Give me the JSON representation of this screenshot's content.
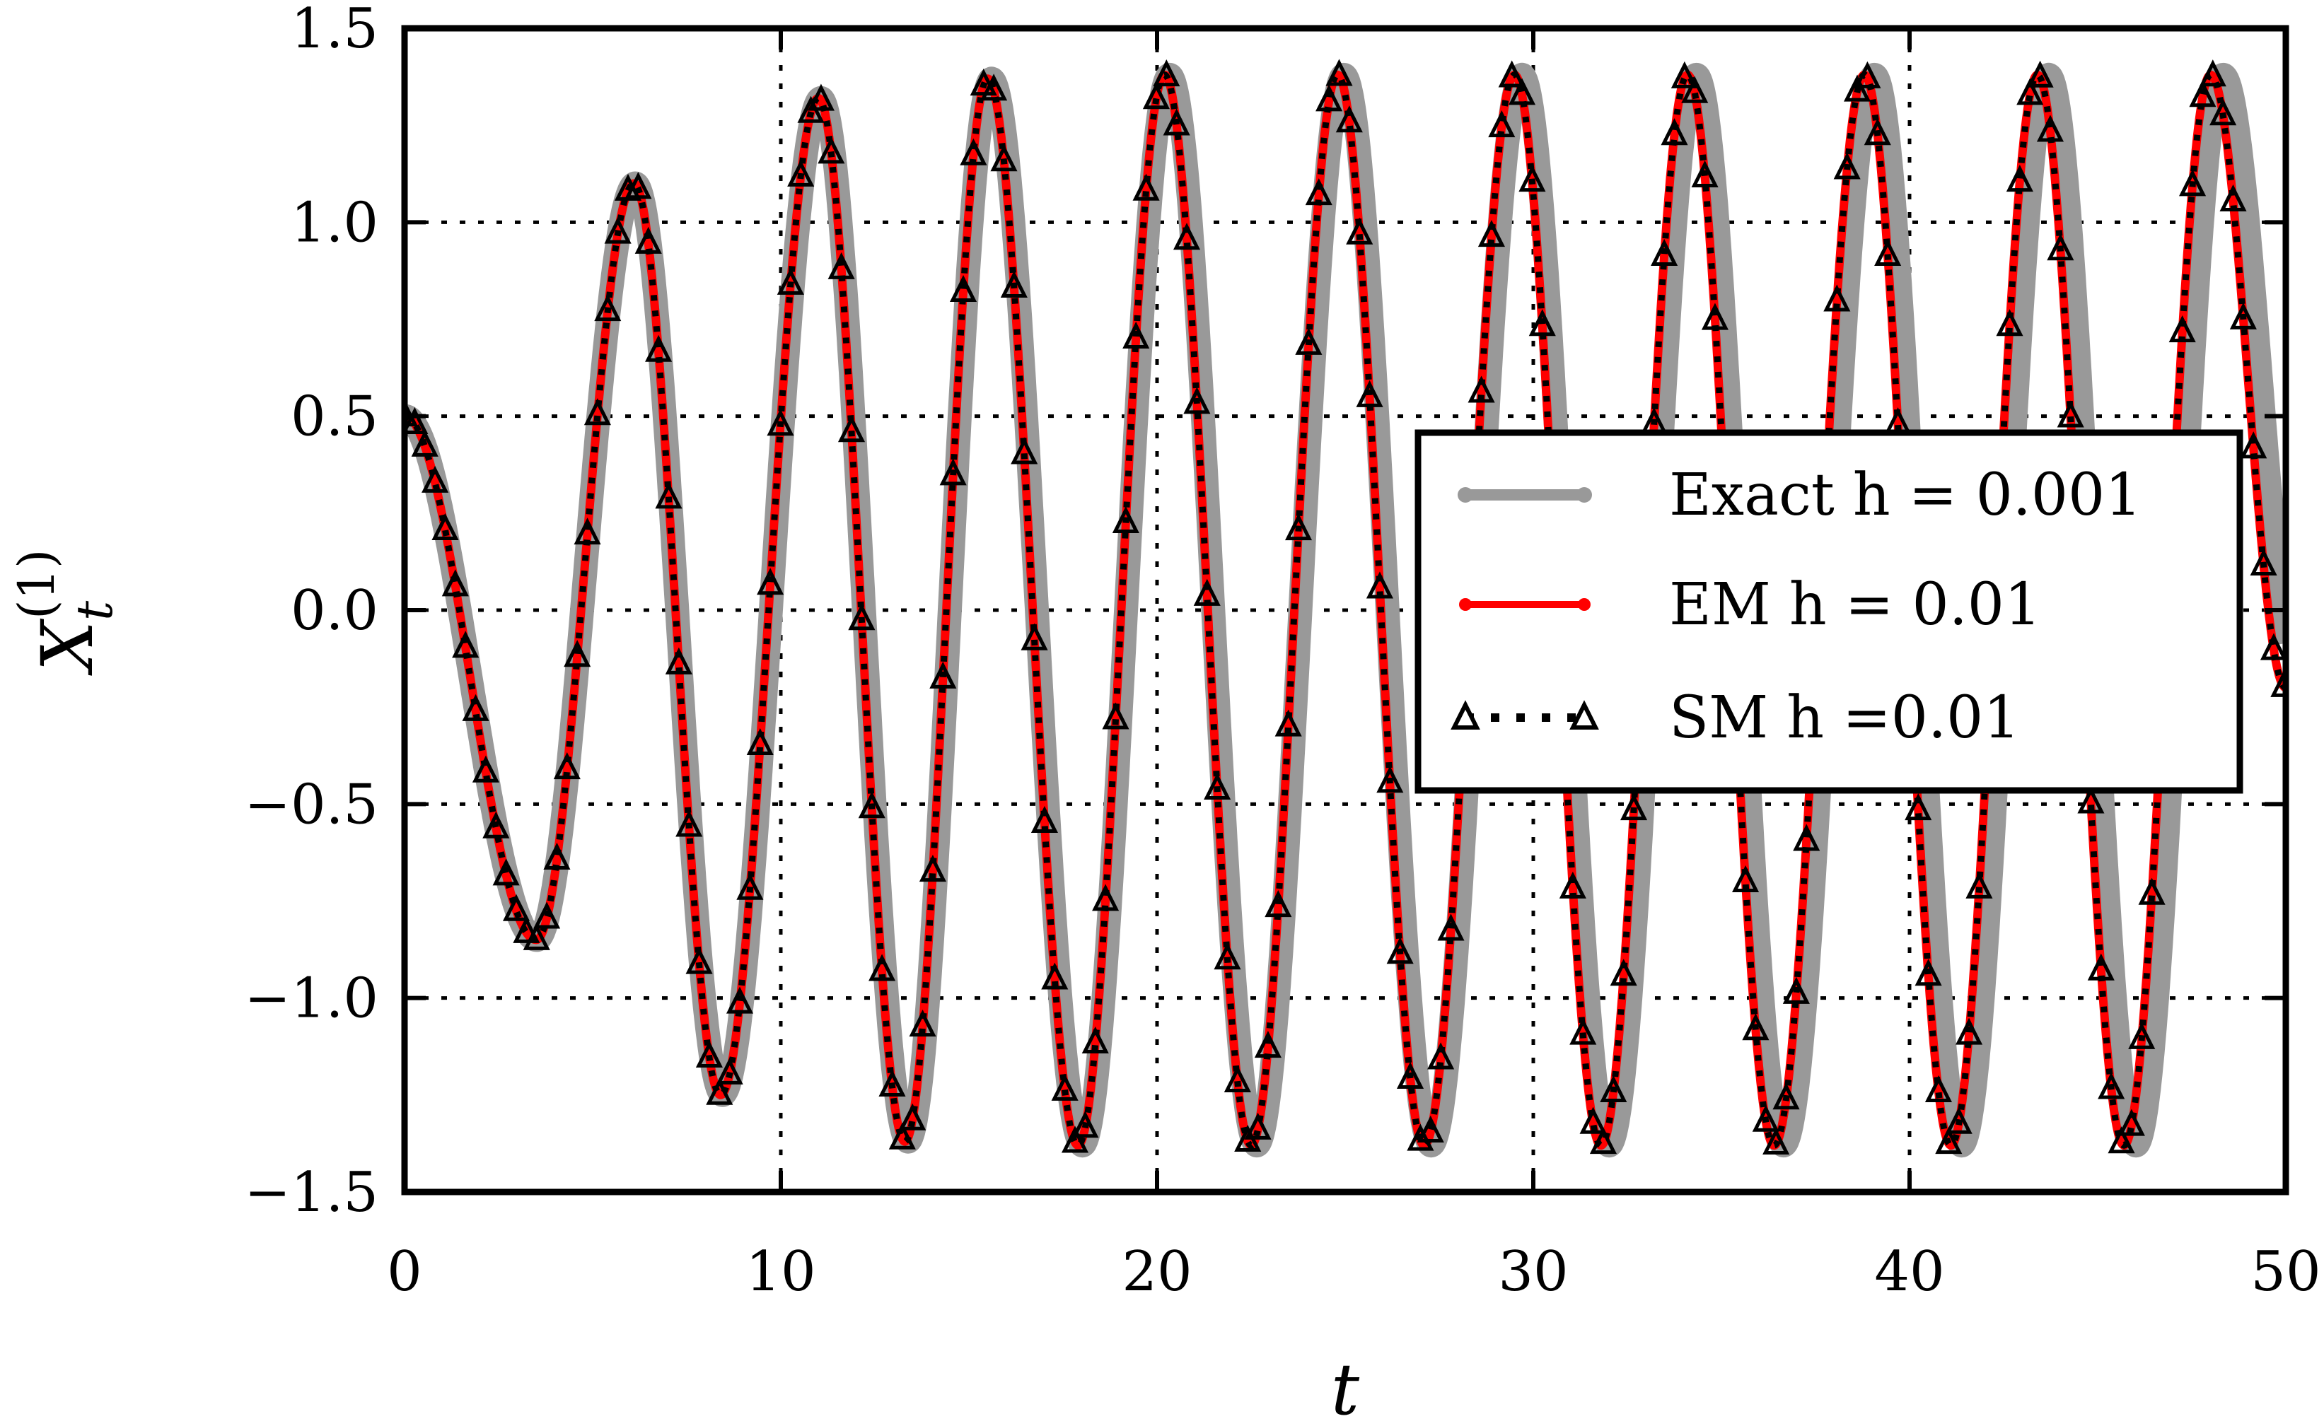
{
  "chart_data": {
    "type": "line",
    "title": "",
    "xlabel": "t",
    "ylabel": {
      "base": "X",
      "subscript": "t",
      "superscript": "(1)"
    },
    "xlim": [
      0,
      50
    ],
    "ylim": [
      -1.5,
      1.5
    ],
    "xticks": [
      0,
      10,
      20,
      30,
      40,
      50
    ],
    "xtick_labels": [
      "0",
      "10",
      "20",
      "30",
      "40",
      "50"
    ],
    "yticks": [
      -1.5,
      -1.0,
      -0.5,
      0.0,
      0.5,
      1.0,
      1.5
    ],
    "ytick_labels": [
      "−1.5",
      "−1.0",
      "−0.5",
      "0.0",
      "0.5",
      "1.0",
      "1.5"
    ],
    "grid": true,
    "legend_position": "center-right",
    "series": [
      {
        "name": "Exact h = 0.001",
        "color": "#999999",
        "style": "solid-thick",
        "description_points": {
          "x": [
            0,
            3.5,
            6.1,
            8.4,
            11.0,
            13.3,
            15.5,
            17.9,
            20.2,
            22.5,
            24.8,
            27.1,
            29.5,
            31.8,
            34.1,
            36.4,
            38.8,
            41.1,
            43.4,
            45.7,
            48.0,
            50.0
          ],
          "y": [
            0.5,
            -0.85,
            1.1,
            -1.25,
            1.32,
            -1.37,
            1.37,
            -1.38,
            1.38,
            -1.38,
            1.38,
            -1.38,
            1.38,
            -1.38,
            1.38,
            -1.38,
            1.38,
            -1.38,
            1.38,
            -1.38,
            1.38,
            -0.2
          ]
        }
      },
      {
        "name": "EM h = 0.01",
        "color": "#ff0000",
        "style": "solid"
      },
      {
        "name": "SM h =0.01",
        "color": "#000000",
        "style": "dotted-triangles"
      }
    ]
  },
  "colors": {
    "exact": "#999999",
    "em": "#ff0000",
    "sm": "#000000",
    "grid": "#000000"
  }
}
